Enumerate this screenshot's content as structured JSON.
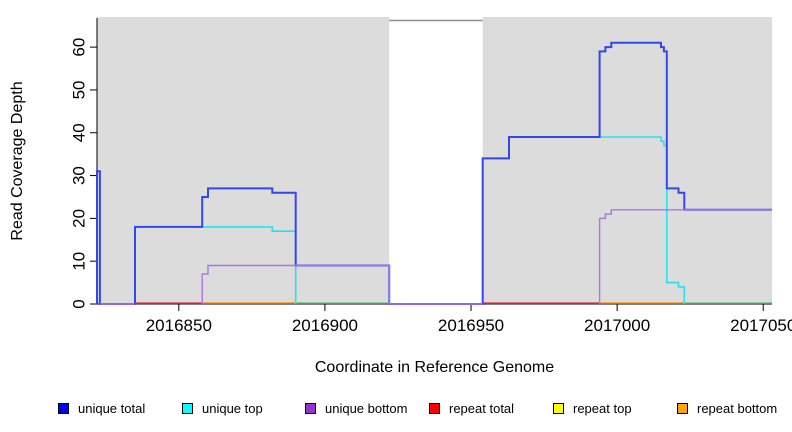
{
  "chart_data": {
    "type": "line",
    "subtype": "step-coverage",
    "title": "",
    "xlabel": "Coordinate in Reference Genome",
    "ylabel": "Read Coverage Depth",
    "xlim": [
      2016822,
      2017053
    ],
    "ylim": [
      0,
      66.8
    ],
    "grid": false,
    "x_ticks": [
      2016850,
      2016900,
      2016950,
      2017000,
      2017050
    ],
    "x_tick_labels": [
      "2016850",
      "2016900",
      "2016950",
      "2017000",
      "2017050"
    ],
    "y_ticks": [
      0,
      10,
      20,
      30,
      40,
      50,
      60
    ],
    "y_tick_labels": [
      "0",
      "10",
      "20",
      "30",
      "40",
      "50",
      "60"
    ],
    "background_regions": [
      {
        "x1": 2016822,
        "x2": 2016922,
        "fill": "#dcdcdc",
        "kind": "covered"
      },
      {
        "x1": 2016922,
        "x2": 2016954,
        "fill": "#ffffff",
        "kind": "gap",
        "border_top": true
      },
      {
        "x1": 2016954,
        "x2": 2017053,
        "fill": "#dcdcdc",
        "kind": "covered"
      }
    ],
    "series": [
      {
        "name": "unique top",
        "color": "#2ddeed",
        "width": 1.6,
        "paths": [
          [
            [
              2016835,
              18
            ],
            [
              2016882,
              17
            ],
            [
              2016890,
              0
            ]
          ],
          [
            [
              2016954,
              0
            ],
            [
              2016954,
              34
            ],
            [
              2016963,
              39
            ],
            [
              2017015,
              38
            ],
            [
              2017016,
              37
            ],
            [
              2017017,
              5
            ],
            [
              2017021,
              4
            ],
            [
              2017023,
              0
            ]
          ]
        ]
      },
      {
        "name": "unique total",
        "color": "#3347ef",
        "width": 2,
        "paths": [
          [
            [
              2016822,
              0
            ],
            [
              2016822,
              31
            ],
            [
              2016823,
              0
            ],
            [
              2016835,
              0
            ],
            [
              2016835,
              18
            ],
            [
              2016858,
              25
            ],
            [
              2016860,
              27
            ],
            [
              2016882,
              26
            ],
            [
              2016890,
              9
            ],
            [
              2016922,
              0
            ],
            [
              2016954,
              0
            ],
            [
              2016954,
              34
            ],
            [
              2016963,
              39
            ],
            [
              2016994,
              59
            ],
            [
              2016996,
              60
            ],
            [
              2016998,
              61
            ],
            [
              2017015,
              60
            ],
            [
              2017016,
              59
            ],
            [
              2017017,
              27
            ],
            [
              2017021,
              26
            ],
            [
              2017023,
              22
            ],
            [
              2017053,
              22
            ]
          ]
        ]
      },
      {
        "name": "unique bottom",
        "color": "#ad74e2",
        "width": 1.4,
        "paths": [
          [
            [
              2016823,
              0
            ],
            [
              2016835,
              0
            ]
          ],
          [
            [
              2016858,
              0
            ],
            [
              2016858,
              7
            ],
            [
              2016860,
              9
            ],
            [
              2016922,
              0
            ],
            [
              2016954,
              0
            ]
          ],
          [
            [
              2016994,
              0
            ],
            [
              2016994,
              20
            ],
            [
              2016996,
              21
            ],
            [
              2016998,
              22
            ],
            [
              2017053,
              22
            ]
          ]
        ]
      }
    ],
    "baseline_segments": [
      {
        "x1": 2016835,
        "x2": 2016858,
        "value": 0,
        "color": "#e1485e"
      },
      {
        "x1": 2016858,
        "x2": 2016890,
        "value": 0,
        "color": "#ff9819"
      },
      {
        "x1": 2016890,
        "x2": 2016922,
        "value": 0,
        "color": "#74c57f"
      },
      {
        "x1": 2016954,
        "x2": 2016994,
        "value": 0,
        "color": "#e1485e"
      },
      {
        "x1": 2016994,
        "x2": 2017023,
        "value": 0,
        "color": "#ff9819"
      },
      {
        "x1": 2017023,
        "x2": 2017053,
        "value": 0,
        "color": "#74c57f"
      }
    ],
    "legend": [
      {
        "label": "unique total",
        "color": "#0000ff"
      },
      {
        "label": "unique top",
        "color": "#00ffff"
      },
      {
        "label": "unique bottom",
        "color": "#9932cc"
      },
      {
        "label": "repeat total",
        "color": "#ff0000"
      },
      {
        "label": "repeat top",
        "color": "#ffff00"
      },
      {
        "label": "repeat bottom",
        "color": "#ffa500"
      }
    ],
    "legend_position": "bottom",
    "colors": {
      "plot_background": "#dcdcdc",
      "gap_top_border": "#8f8f8f",
      "axis": "#000000"
    }
  }
}
